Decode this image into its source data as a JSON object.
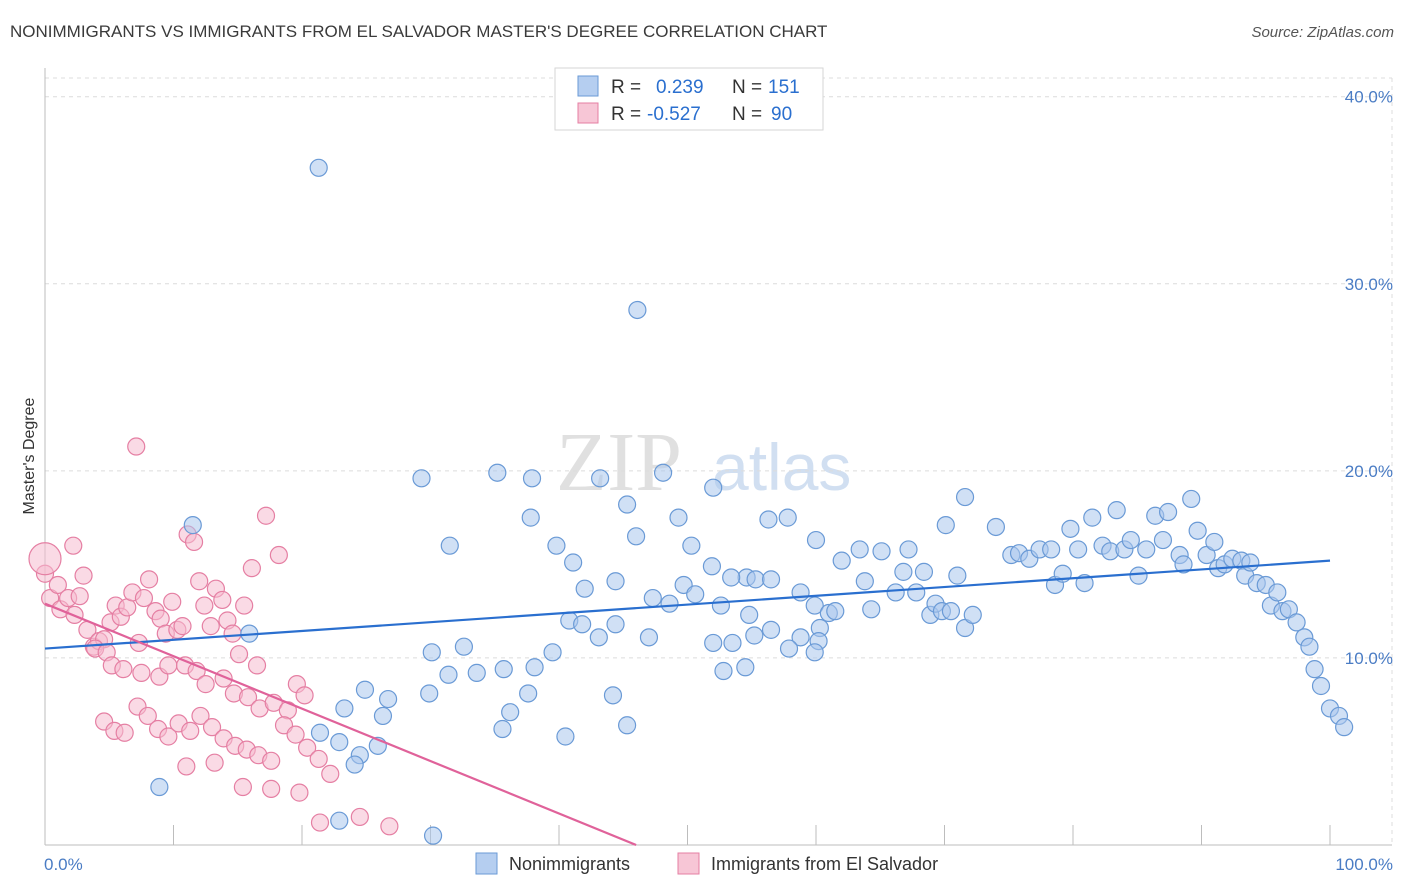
{
  "title": "NONIMMIGRANTS VS IMMIGRANTS FROM EL SALVADOR MASTER'S DEGREE CORRELATION CHART",
  "source": "Source: ZipAtlas.com",
  "watermark": {
    "zip": "ZIP",
    "atlas": "atlas"
  },
  "colors": {
    "blue_fill": "#a9c6ec",
    "blue_stroke": "#6a9ad6",
    "blue_line": "#2a6fcf",
    "pink_fill": "#f6bcd0",
    "pink_stroke": "#e57fa3",
    "pink_line": "#e0629a",
    "text_blue": "#2a6fcf"
  },
  "legend": {
    "rows": [
      {
        "r_label": "R =",
        "r_value": "0.239",
        "n_label": "N =",
        "n_value": "151"
      },
      {
        "r_label": "R =",
        "r_value": "-0.527",
        "n_label": "N =",
        "n_value": "90"
      }
    ]
  },
  "chart_data": {
    "type": "scatter",
    "title": "NONIMMIGRANTS VS IMMIGRANTS FROM EL SALVADOR MASTER'S DEGREE CORRELATION CHART",
    "xlabel": "",
    "ylabel": "Master's Degree",
    "xlim": [
      0,
      100
    ],
    "ylim": [
      0,
      41
    ],
    "x_tick_labels": [
      "0.0%",
      "100.0%"
    ],
    "y_tick_labels": [
      "10.0%",
      "20.0%",
      "30.0%",
      "40.0%"
    ],
    "y_ticks": [
      10,
      20,
      30,
      40
    ],
    "grid": true,
    "legend_position": "top-center",
    "series": [
      {
        "name": "Nonimmigrants",
        "color": "blue",
        "trend": {
          "x": [
            0,
            100
          ],
          "y": [
            10.5,
            15.2
          ]
        },
        "points": [
          [
            21.3,
            36.2
          ],
          [
            46.1,
            28.6
          ],
          [
            29.3,
            19.6
          ],
          [
            35.2,
            19.9
          ],
          [
            37.9,
            19.6
          ],
          [
            43.2,
            19.6
          ],
          [
            48.1,
            19.9
          ],
          [
            52.0,
            19.1
          ],
          [
            11.5,
            17.1
          ],
          [
            31.5,
            16.0
          ],
          [
            37.8,
            17.5
          ],
          [
            39.8,
            16.0
          ],
          [
            41.1,
            15.1
          ],
          [
            46.0,
            16.5
          ],
          [
            45.3,
            18.2
          ],
          [
            49.3,
            17.5
          ],
          [
            50.3,
            16.0
          ],
          [
            51.9,
            14.9
          ],
          [
            56.3,
            17.4
          ],
          [
            57.8,
            17.5
          ],
          [
            60.0,
            16.3
          ],
          [
            42.0,
            13.7
          ],
          [
            44.4,
            14.1
          ],
          [
            47.3,
            13.2
          ],
          [
            48.6,
            12.9
          ],
          [
            49.7,
            13.9
          ],
          [
            50.6,
            13.4
          ],
          [
            52.6,
            12.8
          ],
          [
            54.6,
            14.3
          ],
          [
            55.3,
            14.2
          ],
          [
            56.5,
            14.2
          ],
          [
            53.4,
            14.3
          ],
          [
            58.8,
            13.5
          ],
          [
            59.9,
            12.8
          ],
          [
            40.8,
            12.0
          ],
          [
            41.8,
            11.8
          ],
          [
            43.1,
            11.1
          ],
          [
            44.4,
            11.8
          ],
          [
            47.0,
            11.1
          ],
          [
            54.8,
            12.3
          ],
          [
            56.5,
            11.5
          ],
          [
            60.3,
            11.6
          ],
          [
            61.0,
            12.4
          ],
          [
            52.0,
            10.8
          ],
          [
            53.5,
            10.8
          ],
          [
            55.2,
            11.2
          ],
          [
            58.8,
            11.1
          ],
          [
            60.2,
            10.9
          ],
          [
            52.8,
            9.3
          ],
          [
            54.5,
            9.5
          ],
          [
            57.9,
            10.5
          ],
          [
            59.9,
            10.3
          ],
          [
            61.5,
            12.5
          ],
          [
            62.0,
            15.2
          ],
          [
            63.4,
            15.8
          ],
          [
            63.8,
            14.1
          ],
          [
            64.3,
            12.6
          ],
          [
            65.1,
            15.7
          ],
          [
            66.2,
            13.5
          ],
          [
            66.8,
            14.6
          ],
          [
            67.2,
            15.8
          ],
          [
            67.8,
            13.5
          ],
          [
            68.4,
            14.6
          ],
          [
            68.9,
            12.3
          ],
          [
            69.3,
            12.9
          ],
          [
            69.8,
            12.5
          ],
          [
            70.5,
            12.5
          ],
          [
            71.0,
            14.4
          ],
          [
            71.6,
            11.6
          ],
          [
            72.2,
            12.3
          ],
          [
            70.1,
            17.1
          ],
          [
            71.6,
            18.6
          ],
          [
            74.0,
            17.0
          ],
          [
            75.2,
            15.5
          ],
          [
            75.8,
            15.6
          ],
          [
            76.6,
            15.3
          ],
          [
            77.4,
            15.8
          ],
          [
            78.3,
            15.8
          ],
          [
            78.6,
            13.9
          ],
          [
            79.2,
            14.5
          ],
          [
            79.8,
            16.9
          ],
          [
            80.4,
            15.8
          ],
          [
            80.9,
            14.0
          ],
          [
            81.5,
            17.5
          ],
          [
            82.3,
            16.0
          ],
          [
            82.9,
            15.7
          ],
          [
            83.4,
            17.9
          ],
          [
            84.0,
            15.8
          ],
          [
            84.5,
            16.3
          ],
          [
            85.1,
            14.4
          ],
          [
            85.7,
            15.8
          ],
          [
            86.4,
            17.6
          ],
          [
            87.0,
            16.3
          ],
          [
            87.4,
            17.8
          ],
          [
            88.3,
            15.5
          ],
          [
            88.6,
            15.0
          ],
          [
            89.2,
            18.5
          ],
          [
            89.7,
            16.8
          ],
          [
            90.4,
            15.5
          ],
          [
            91.0,
            16.2
          ],
          [
            91.3,
            14.8
          ],
          [
            91.8,
            15.0
          ],
          [
            92.4,
            15.3
          ],
          [
            93.1,
            15.2
          ],
          [
            93.4,
            14.4
          ],
          [
            93.8,
            15.1
          ],
          [
            94.3,
            14.0
          ],
          [
            95.0,
            13.9
          ],
          [
            95.4,
            12.8
          ],
          [
            95.9,
            13.5
          ],
          [
            96.3,
            12.5
          ],
          [
            96.8,
            12.6
          ],
          [
            97.4,
            11.9
          ],
          [
            98.0,
            11.1
          ],
          [
            98.4,
            10.6
          ],
          [
            98.8,
            9.4
          ],
          [
            99.3,
            8.5
          ],
          [
            100.0,
            7.3
          ],
          [
            100.7,
            6.9
          ],
          [
            101.1,
            6.3
          ],
          [
            15.9,
            11.3
          ],
          [
            30.1,
            10.3
          ],
          [
            32.6,
            10.6
          ],
          [
            39.5,
            10.3
          ],
          [
            31.4,
            9.1
          ],
          [
            33.6,
            9.2
          ],
          [
            35.7,
            9.4
          ],
          [
            38.1,
            9.5
          ],
          [
            24.9,
            8.3
          ],
          [
            26.7,
            7.8
          ],
          [
            29.9,
            8.1
          ],
          [
            37.6,
            8.1
          ],
          [
            36.2,
            7.1
          ],
          [
            23.3,
            7.3
          ],
          [
            26.3,
            6.9
          ],
          [
            35.6,
            6.2
          ],
          [
            40.5,
            5.8
          ],
          [
            44.2,
            8.0
          ],
          [
            45.3,
            6.4
          ],
          [
            22.9,
            5.5
          ],
          [
            21.4,
            6.0
          ],
          [
            25.9,
            5.3
          ],
          [
            24.5,
            4.8
          ],
          [
            24.1,
            4.3
          ],
          [
            8.9,
            3.1
          ],
          [
            22.9,
            1.3
          ],
          [
            30.2,
            0.5
          ]
        ]
      },
      {
        "name": "Immigrants from El Salvador",
        "color": "pink",
        "trend": {
          "x": [
            0,
            46.0
          ],
          "y": [
            12.9,
            0
          ]
        },
        "points": [
          [
            0.0,
            14.5
          ],
          [
            0.4,
            13.2
          ],
          [
            1.0,
            13.9
          ],
          [
            1.2,
            12.6
          ],
          [
            1.8,
            13.2
          ],
          [
            2.3,
            12.3
          ],
          [
            2.7,
            13.3
          ],
          [
            3.0,
            14.4
          ],
          [
            3.3,
            11.5
          ],
          [
            3.8,
            10.6
          ],
          [
            4.2,
            10.9
          ],
          [
            4.6,
            11.0
          ],
          [
            5.1,
            11.9
          ],
          [
            5.5,
            12.8
          ],
          [
            5.9,
            12.2
          ],
          [
            6.4,
            12.7
          ],
          [
            6.8,
            13.5
          ],
          [
            7.3,
            10.8
          ],
          [
            7.7,
            13.2
          ],
          [
            8.1,
            14.2
          ],
          [
            8.6,
            12.5
          ],
          [
            9.0,
            12.1
          ],
          [
            9.4,
            11.3
          ],
          [
            9.9,
            13.0
          ],
          [
            10.3,
            11.5
          ],
          [
            10.7,
            11.7
          ],
          [
            11.1,
            16.6
          ],
          [
            11.6,
            16.2
          ],
          [
            12.0,
            14.1
          ],
          [
            12.4,
            12.8
          ],
          [
            12.9,
            11.7
          ],
          [
            13.3,
            13.7
          ],
          [
            13.8,
            13.1
          ],
          [
            14.2,
            12.0
          ],
          [
            14.6,
            11.3
          ],
          [
            15.1,
            10.2
          ],
          [
            15.5,
            12.8
          ],
          [
            16.1,
            14.8
          ],
          [
            16.5,
            9.6
          ],
          [
            17.2,
            17.6
          ],
          [
            18.2,
            15.5
          ],
          [
            2.2,
            16.0
          ],
          [
            7.1,
            21.3
          ],
          [
            3.9,
            10.5
          ],
          [
            4.8,
            10.3
          ],
          [
            5.2,
            9.6
          ],
          [
            6.1,
            9.4
          ],
          [
            7.5,
            9.2
          ],
          [
            8.9,
            9.0
          ],
          [
            9.6,
            9.6
          ],
          [
            10.9,
            9.6
          ],
          [
            11.8,
            9.3
          ],
          [
            12.5,
            8.6
          ],
          [
            13.9,
            8.9
          ],
          [
            14.7,
            8.1
          ],
          [
            15.8,
            7.9
          ],
          [
            16.7,
            7.3
          ],
          [
            17.8,
            7.6
          ],
          [
            18.9,
            7.2
          ],
          [
            19.6,
            8.6
          ],
          [
            20.2,
            8.0
          ],
          [
            4.6,
            6.6
          ],
          [
            5.4,
            6.1
          ],
          [
            6.2,
            6.0
          ],
          [
            7.2,
            7.4
          ],
          [
            8.0,
            6.9
          ],
          [
            8.8,
            6.2
          ],
          [
            9.6,
            5.8
          ],
          [
            10.4,
            6.5
          ],
          [
            11.3,
            6.1
          ],
          [
            12.1,
            6.9
          ],
          [
            13.0,
            6.3
          ],
          [
            13.9,
            5.7
          ],
          [
            14.8,
            5.3
          ],
          [
            15.7,
            5.1
          ],
          [
            16.6,
            4.8
          ],
          [
            17.6,
            4.5
          ],
          [
            18.6,
            6.4
          ],
          [
            19.5,
            5.9
          ],
          [
            20.4,
            5.2
          ],
          [
            21.3,
            4.6
          ],
          [
            22.2,
            3.8
          ],
          [
            11.0,
            4.2
          ],
          [
            13.2,
            4.4
          ],
          [
            15.4,
            3.1
          ],
          [
            17.6,
            3.0
          ],
          [
            19.8,
            2.8
          ],
          [
            21.4,
            1.2
          ],
          [
            24.5,
            1.5
          ],
          [
            26.8,
            1.0
          ]
        ]
      }
    ]
  },
  "bottom_legend": {
    "items": [
      {
        "label": "Nonimmigrants"
      },
      {
        "label": "Immigrants from El Salvador"
      }
    ]
  }
}
